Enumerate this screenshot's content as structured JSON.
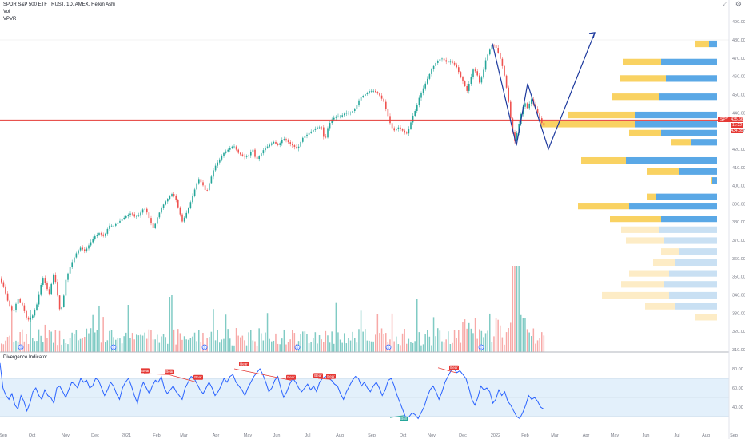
{
  "legend": {
    "title": "SPDR S&P 500 ETF TRUST, 1D, AMEX, Heikin Ashi",
    "vol": "Vol",
    "vpvr": "VPVR"
  },
  "indicator": {
    "title": "Divergence Indicator",
    "yticks": [
      "80.00",
      "60.00",
      "40.00"
    ],
    "band": [
      30,
      70
    ],
    "mid": 50,
    "bear_labels": [
      "Bear",
      "Bear",
      "Bear",
      "Bear",
      "Bear",
      "Bear",
      "Bear",
      "Bear"
    ],
    "bull_labels": [
      "Bull"
    ]
  },
  "price_tags": {
    "symbol": "SPY",
    "last": "435.66",
    "countdown": "11:22",
    "second": "434.85"
  },
  "colors": {
    "up": "#26a69a",
    "down": "#ef5350",
    "vol_up": "#80cbc4",
    "vol_down": "#f7a9a7",
    "vp_up": "#5aa8e6",
    "vp_down": "#f9d262",
    "vp_up_faded": "#c9e0f3",
    "vp_down_faded": "#fdecc6",
    "hline": "#e53935",
    "drawing": "#1e3a9e",
    "rsi": "#2962ff",
    "band": "#e3f0fb"
  },
  "chart_data": {
    "type": "candlestick",
    "title": "SPDR S&P 500 ETF TRUST, 1D, AMEX, Heikin Ashi",
    "x_ticks": [
      "Sep",
      "Oct",
      "Nov",
      "Dec",
      "2021",
      "Feb",
      "Mar",
      "Apr",
      "May",
      "Jun",
      "Jul",
      "Aug",
      "Sep",
      "Oct",
      "Nov",
      "Dec",
      "2022",
      "Feb",
      "Mar",
      "Apr",
      "May",
      "Jun",
      "Jul",
      "Aug",
      "Sep"
    ],
    "y_ticks": [
      490,
      480,
      470,
      460,
      450,
      440,
      430,
      420,
      410,
      400,
      390,
      380,
      370,
      360,
      350,
      340,
      330,
      320,
      310
    ],
    "ylim": [
      307,
      497
    ],
    "horizontal_line": 436,
    "price_path": [
      [
        0,
        350
      ],
      [
        6,
        345
      ],
      [
        12,
        336
      ],
      [
        18,
        330
      ],
      [
        24,
        338
      ],
      [
        30,
        334
      ],
      [
        36,
        326
      ],
      [
        42,
        328
      ],
      [
        48,
        335
      ],
      [
        52,
        344
      ],
      [
        56,
        350
      ],
      [
        60,
        344
      ],
      [
        64,
        340
      ],
      [
        68,
        352
      ],
      [
        72,
        346
      ],
      [
        76,
        332
      ],
      [
        80,
        334
      ],
      [
        84,
        348
      ],
      [
        90,
        356
      ],
      [
        96,
        362
      ],
      [
        102,
        366
      ],
      [
        108,
        364
      ],
      [
        114,
        368
      ],
      [
        120,
        372
      ],
      [
        126,
        374
      ],
      [
        132,
        372
      ],
      [
        138,
        378
      ],
      [
        144,
        378
      ],
      [
        150,
        380
      ],
      [
        156,
        382
      ],
      [
        162,
        384
      ],
      [
        166,
        385
      ],
      [
        170,
        383
      ],
      [
        176,
        384
      ],
      [
        182,
        388
      ],
      [
        186,
        385
      ],
      [
        190,
        380
      ],
      [
        194,
        376
      ],
      [
        198,
        382
      ],
      [
        204,
        388
      ],
      [
        210,
        392
      ],
      [
        214,
        394
      ],
      [
        218,
        396
      ],
      [
        222,
        392
      ],
      [
        226,
        386
      ],
      [
        230,
        380
      ],
      [
        234,
        384
      ],
      [
        238,
        388
      ],
      [
        244,
        396
      ],
      [
        250,
        404
      ],
      [
        256,
        400
      ],
      [
        260,
        396
      ],
      [
        264,
        402
      ],
      [
        270,
        410
      ],
      [
        276,
        414
      ],
      [
        282,
        418
      ],
      [
        288,
        420
      ],
      [
        294,
        422
      ],
      [
        300,
        418
      ],
      [
        306,
        416
      ],
      [
        312,
        416
      ],
      [
        318,
        420
      ],
      [
        322,
        414
      ],
      [
        326,
        416
      ],
      [
        332,
        420
      ],
      [
        338,
        422
      ],
      [
        344,
        424
      ],
      [
        350,
        422
      ],
      [
        356,
        426
      ],
      [
        362,
        424
      ],
      [
        368,
        422
      ],
      [
        374,
        420
      ],
      [
        380,
        426
      ],
      [
        386,
        428
      ],
      [
        392,
        430
      ],
      [
        398,
        432
      ],
      [
        404,
        432
      ],
      [
        408,
        424
      ],
      [
        412,
        432
      ],
      [
        416,
        436
      ],
      [
        422,
        438
      ],
      [
        428,
        438
      ],
      [
        434,
        440
      ],
      [
        440,
        440
      ],
      [
        446,
        442
      ],
      [
        452,
        448
      ],
      [
        458,
        450
      ],
      [
        464,
        452
      ],
      [
        470,
        452
      ],
      [
        476,
        450
      ],
      [
        482,
        446
      ],
      [
        486,
        440
      ],
      [
        490,
        434
      ],
      [
        494,
        430
      ],
      [
        500,
        432
      ],
      [
        506,
        430
      ],
      [
        510,
        428
      ],
      [
        514,
        432
      ],
      [
        518,
        438
      ],
      [
        522,
        442
      ],
      [
        526,
        448
      ],
      [
        530,
        452
      ],
      [
        536,
        458
      ],
      [
        542,
        464
      ],
      [
        548,
        468
      ],
      [
        554,
        470
      ],
      [
        560,
        468
      ],
      [
        566,
        468
      ],
      [
        572,
        466
      ],
      [
        578,
        460
      ],
      [
        582,
        456
      ],
      [
        586,
        452
      ],
      [
        590,
        458
      ],
      [
        594,
        464
      ],
      [
        598,
        462
      ],
      [
        602,
        456
      ],
      [
        606,
        462
      ],
      [
        610,
        470
      ],
      [
        614,
        474
      ],
      [
        618,
        478
      ],
      [
        622,
        476
      ],
      [
        626,
        472
      ],
      [
        630,
        466
      ],
      [
        634,
        458
      ],
      [
        638,
        446
      ],
      [
        642,
        432
      ],
      [
        646,
        424
      ],
      [
        650,
        432
      ],
      [
        654,
        440
      ],
      [
        658,
        446
      ],
      [
        662,
        442
      ],
      [
        666,
        448
      ],
      [
        670,
        444
      ],
      [
        674,
        440
      ],
      [
        678,
        436
      ],
      [
        681,
        433
      ]
    ],
    "volume_x": [
      0,
      682
    ],
    "volume_note": "per-day volume bars along bottom of price pane",
    "volume_profile": [
      {
        "price_low": 476,
        "up": 10,
        "down": 18,
        "faded": false
      },
      {
        "price_low": 466,
        "up": 70,
        "down": 48,
        "faded": false
      },
      {
        "price_low": 457,
        "up": 64,
        "down": 58,
        "faded": false
      },
      {
        "price_low": 447,
        "up": 72,
        "down": 60,
        "faded": false
      },
      {
        "price_low": 437,
        "up": 102,
        "down": 84,
        "faded": false
      },
      {
        "price_low": 432,
        "up": 102,
        "down": 120,
        "faded": false
      },
      {
        "price_low": 427,
        "up": 70,
        "down": 40,
        "faded": false
      },
      {
        "price_low": 422,
        "up": 32,
        "down": 26,
        "faded": false
      },
      {
        "price_low": 412,
        "up": 114,
        "down": 56,
        "faded": false
      },
      {
        "price_low": 406,
        "up": 48,
        "down": 40,
        "faded": false
      },
      {
        "price_low": 401,
        "up": 6,
        "down": 2,
        "faded": false
      },
      {
        "price_low": 392,
        "up": 76,
        "down": 12,
        "faded": false
      },
      {
        "price_low": 387,
        "up": 110,
        "down": 64,
        "faded": false
      },
      {
        "price_low": 380,
        "up": 70,
        "down": 64,
        "faded": false
      },
      {
        "price_low": 374,
        "up": 72,
        "down": 48,
        "faded": true
      },
      {
        "price_low": 368,
        "up": 66,
        "down": 48,
        "faded": true
      },
      {
        "price_low": 362,
        "up": 48,
        "down": 22,
        "faded": true
      },
      {
        "price_low": 356,
        "up": 52,
        "down": 28,
        "faded": true
      },
      {
        "price_low": 350,
        "up": 60,
        "down": 50,
        "faded": true
      },
      {
        "price_low": 344,
        "up": 66,
        "down": 54,
        "faded": true
      },
      {
        "price_low": 338,
        "up": 60,
        "down": 84,
        "faded": true
      },
      {
        "price_low": 332,
        "up": 52,
        "down": 38,
        "faded": true
      },
      {
        "price_low": 326,
        "up": 0,
        "down": 28,
        "faded": true
      }
    ],
    "drawing_path": [
      [
        616,
        478
      ],
      [
        646,
        422
      ],
      [
        660,
        456
      ],
      [
        686,
        420
      ],
      [
        744,
        484
      ]
    ],
    "rsi": [
      86,
      60,
      52,
      48,
      54,
      42,
      38,
      52,
      46,
      36,
      44,
      56,
      60,
      52,
      48,
      58,
      52,
      50,
      44,
      60,
      62,
      56,
      50,
      58,
      66,
      64,
      60,
      70,
      66,
      68,
      60,
      62,
      70,
      68,
      60,
      52,
      58,
      66,
      62,
      54,
      48,
      60,
      66,
      70,
      62,
      52,
      44,
      58,
      66,
      60,
      54,
      62,
      68,
      66,
      72,
      60,
      54,
      58,
      62,
      56,
      52,
      48,
      60,
      66,
      72,
      70,
      64,
      58,
      54,
      60,
      66,
      60,
      52,
      56,
      62,
      70,
      66,
      72,
      74,
      66,
      62,
      58,
      52,
      60,
      66,
      72,
      76,
      80,
      74,
      66,
      56,
      60,
      68,
      72,
      60,
      50,
      56,
      64,
      70,
      66,
      60,
      56,
      60,
      64,
      58,
      62,
      56,
      66,
      70,
      72,
      70,
      68,
      64,
      62,
      54,
      48,
      56,
      62,
      68,
      72,
      70,
      62,
      66,
      60,
      56,
      62,
      66,
      60,
      52,
      58,
      68,
      70,
      62,
      52,
      44,
      36,
      28,
      30,
      34,
      32,
      28,
      34,
      40,
      50,
      58,
      62,
      56,
      48,
      56,
      66,
      72,
      78,
      80,
      76,
      78,
      74,
      70,
      60,
      48,
      42,
      50,
      62,
      58,
      60,
      56,
      44,
      48,
      58,
      52,
      56,
      46,
      42,
      36,
      30,
      28,
      34,
      42,
      52,
      48,
      50,
      46,
      40,
      38
    ]
  }
}
